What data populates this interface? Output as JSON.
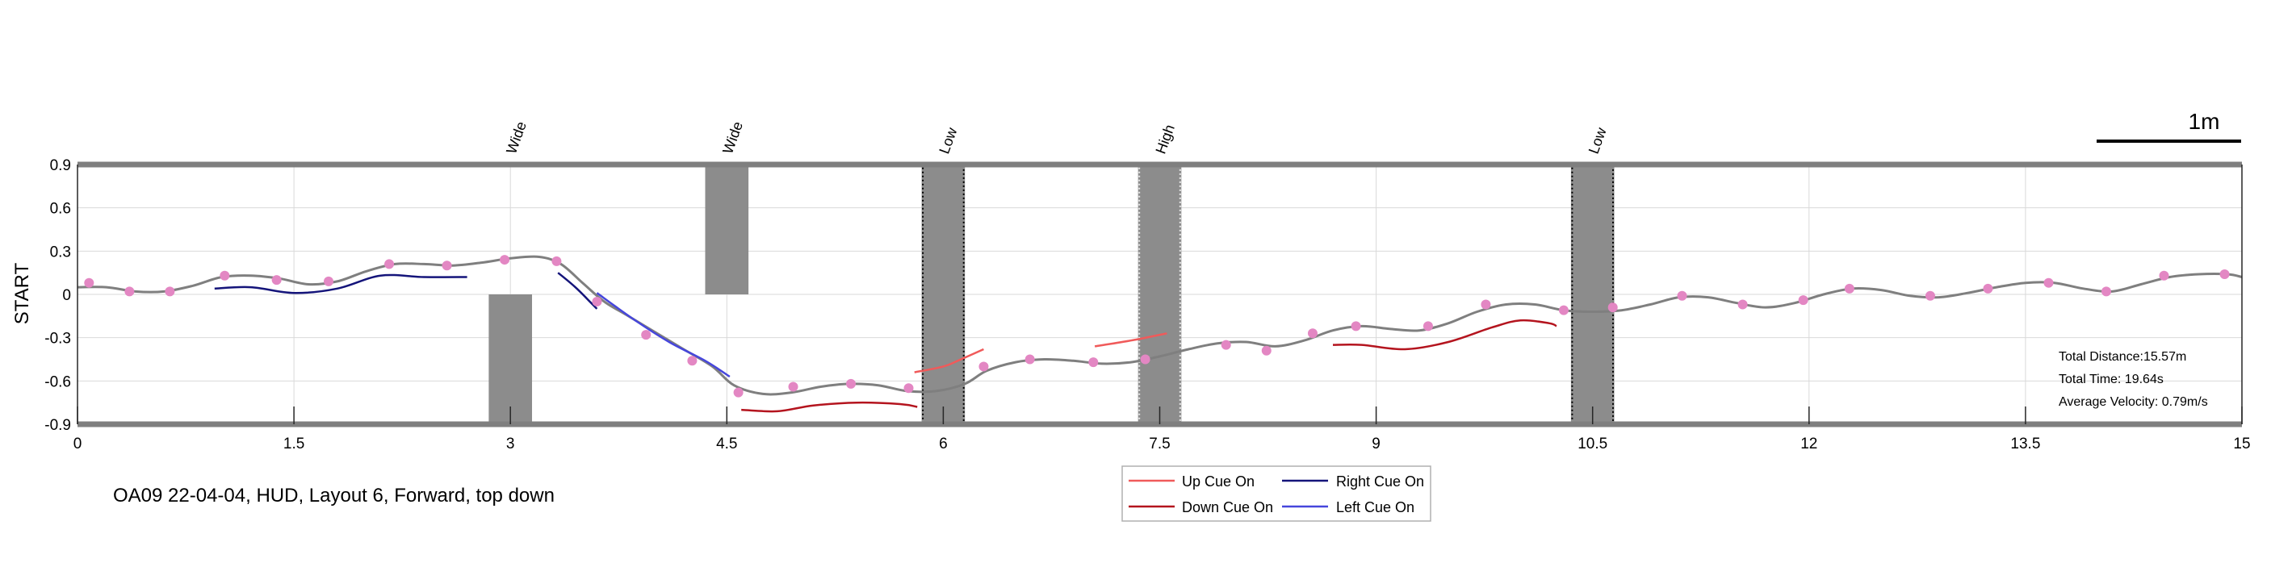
{
  "chart_data": {
    "type": "line",
    "title": "",
    "ylabel": "START",
    "xlabel": "",
    "xlim": [
      0,
      15
    ],
    "ylim": [
      -0.9,
      0.9
    ],
    "x_ticks": [
      "0",
      "1.5",
      "3",
      "4.5",
      "6",
      "7.5",
      "9",
      "10.5",
      "12",
      "13.5",
      "15"
    ],
    "y_ticks": [
      "0.9",
      "0.6",
      "0.3",
      "0",
      "-0.3",
      "-0.6",
      "-0.9"
    ],
    "grid": true,
    "scale_bar_label": "1m",
    "caption": "OA09 22-04-04, HUD, Layout 6, Forward, top down",
    "stats": [
      "Total Distance:15.57m",
      "Total Time: 19.64s",
      "Average Velocity: 0.79m/s"
    ],
    "legend": {
      "placement": "bottom-center",
      "entries": [
        {
          "label": "Up Cue On",
          "color": "#f05a5a"
        },
        {
          "label": "Right Cue On",
          "color": "#14147a"
        },
        {
          "label": "Down Cue On",
          "color": "#b4141e"
        },
        {
          "label": "Left Cue On",
          "color": "#4646dc"
        }
      ]
    },
    "obstacles": [
      {
        "label": "Wide",
        "x_start": 2.85,
        "x_end": 3.15,
        "y_start": -0.9,
        "y_end": 0.0,
        "label_x": 3.0,
        "dotted": false
      },
      {
        "label": "Wide",
        "x_start": 4.35,
        "x_end": 4.65,
        "y_start": 0.0,
        "y_end": 0.9,
        "label_x": 4.5,
        "dotted": false
      },
      {
        "label": "Low",
        "x_start": 5.85,
        "x_end": 6.15,
        "y_start": -0.9,
        "y_end": 0.9,
        "label_x": 6.0,
        "dotted": true,
        "dot_color": "#000000"
      },
      {
        "label": "High",
        "x_start": 7.35,
        "x_end": 7.65,
        "y_start": -0.9,
        "y_end": 0.9,
        "label_x": 7.5,
        "dotted": true,
        "dot_color": "#e6e6e6"
      },
      {
        "label": "Low",
        "x_start": 10.35,
        "x_end": 10.65,
        "y_start": -0.9,
        "y_end": 0.9,
        "label_x": 10.5,
        "dotted": true,
        "dot_color": "#000000"
      }
    ],
    "trajectory": {
      "color": "#7f7f7f",
      "points": [
        [
          0.0,
          0.05
        ],
        [
          0.2,
          0.05
        ],
        [
          0.4,
          0.02
        ],
        [
          0.6,
          0.02
        ],
        [
          0.8,
          0.06
        ],
        [
          1.0,
          0.12
        ],
        [
          1.2,
          0.13
        ],
        [
          1.4,
          0.11
        ],
        [
          1.6,
          0.07
        ],
        [
          1.8,
          0.09
        ],
        [
          2.0,
          0.16
        ],
        [
          2.2,
          0.21
        ],
        [
          2.4,
          0.21
        ],
        [
          2.6,
          0.2
        ],
        [
          2.8,
          0.22
        ],
        [
          3.0,
          0.25
        ],
        [
          3.2,
          0.26
        ],
        [
          3.35,
          0.21
        ],
        [
          3.5,
          0.08
        ],
        [
          3.65,
          -0.05
        ],
        [
          3.8,
          -0.14
        ],
        [
          4.0,
          -0.26
        ],
        [
          4.2,
          -0.38
        ],
        [
          4.4,
          -0.5
        ],
        [
          4.55,
          -0.63
        ],
        [
          4.75,
          -0.69
        ],
        [
          4.95,
          -0.68
        ],
        [
          5.15,
          -0.64
        ],
        [
          5.35,
          -0.62
        ],
        [
          5.55,
          -0.63
        ],
        [
          5.75,
          -0.67
        ],
        [
          5.95,
          -0.67
        ],
        [
          6.15,
          -0.62
        ],
        [
          6.3,
          -0.53
        ],
        [
          6.5,
          -0.47
        ],
        [
          6.7,
          -0.45
        ],
        [
          6.9,
          -0.46
        ],
        [
          7.1,
          -0.48
        ],
        [
          7.3,
          -0.47
        ],
        [
          7.5,
          -0.43
        ],
        [
          7.7,
          -0.38
        ],
        [
          7.9,
          -0.34
        ],
        [
          8.1,
          -0.33
        ],
        [
          8.3,
          -0.36
        ],
        [
          8.5,
          -0.32
        ],
        [
          8.7,
          -0.25
        ],
        [
          8.9,
          -0.22
        ],
        [
          9.1,
          -0.24
        ],
        [
          9.3,
          -0.25
        ],
        [
          9.5,
          -0.2
        ],
        [
          9.7,
          -0.12
        ],
        [
          9.9,
          -0.07
        ],
        [
          10.1,
          -0.07
        ],
        [
          10.3,
          -0.11
        ],
        [
          10.5,
          -0.12
        ],
        [
          10.7,
          -0.11
        ],
        [
          10.9,
          -0.07
        ],
        [
          11.1,
          -0.02
        ],
        [
          11.3,
          -0.02
        ],
        [
          11.5,
          -0.06
        ],
        [
          11.7,
          -0.09
        ],
        [
          11.9,
          -0.06
        ],
        [
          12.1,
          0.0
        ],
        [
          12.3,
          0.04
        ],
        [
          12.5,
          0.03
        ],
        [
          12.7,
          -0.01
        ],
        [
          12.9,
          -0.02
        ],
        [
          13.1,
          0.01
        ],
        [
          13.3,
          0.05
        ],
        [
          13.5,
          0.08
        ],
        [
          13.7,
          0.08
        ],
        [
          13.9,
          0.04
        ],
        [
          14.1,
          0.02
        ],
        [
          14.3,
          0.07
        ],
        [
          14.5,
          0.12
        ],
        [
          14.7,
          0.14
        ],
        [
          14.9,
          0.14
        ],
        [
          15.0,
          0.12
        ]
      ]
    },
    "markers": {
      "color": "#e387c3",
      "points": [
        [
          0.08,
          0.08
        ],
        [
          0.36,
          0.02
        ],
        [
          0.64,
          0.02
        ],
        [
          1.02,
          0.13
        ],
        [
          1.38,
          0.1
        ],
        [
          1.74,
          0.09
        ],
        [
          2.16,
          0.21
        ],
        [
          2.56,
          0.2
        ],
        [
          2.96,
          0.24
        ],
        [
          3.32,
          0.23
        ],
        [
          3.6,
          -0.05
        ],
        [
          3.94,
          -0.28
        ],
        [
          4.26,
          -0.46
        ],
        [
          4.58,
          -0.68
        ],
        [
          4.96,
          -0.64
        ],
        [
          5.36,
          -0.62
        ],
        [
          5.76,
          -0.65
        ],
        [
          6.28,
          -0.5
        ],
        [
          6.6,
          -0.45
        ],
        [
          7.04,
          -0.47
        ],
        [
          7.4,
          -0.45
        ],
        [
          7.96,
          -0.35
        ],
        [
          8.24,
          -0.39
        ],
        [
          8.56,
          -0.27
        ],
        [
          8.86,
          -0.22
        ],
        [
          9.36,
          -0.22
        ],
        [
          9.76,
          -0.07
        ],
        [
          10.3,
          -0.11
        ],
        [
          10.64,
          -0.09
        ],
        [
          11.12,
          -0.01
        ],
        [
          11.54,
          -0.07
        ],
        [
          11.96,
          -0.04
        ],
        [
          12.28,
          0.04
        ],
        [
          12.84,
          -0.01
        ],
        [
          13.24,
          0.04
        ],
        [
          13.66,
          0.08
        ],
        [
          14.06,
          0.02
        ],
        [
          14.46,
          0.13
        ],
        [
          14.88,
          0.14
        ]
      ]
    },
    "cue_segments": [
      {
        "cue": "Right Cue On",
        "color": "#14147a",
        "points": [
          [
            0.95,
            0.04
          ],
          [
            1.2,
            0.05
          ],
          [
            1.5,
            0.01
          ],
          [
            1.8,
            0.04
          ],
          [
            2.1,
            0.13
          ],
          [
            2.4,
            0.12
          ],
          [
            2.7,
            0.12
          ]
        ]
      },
      {
        "cue": "Right Cue On",
        "color": "#14147a",
        "points": [
          [
            3.33,
            0.15
          ],
          [
            3.45,
            0.05
          ],
          [
            3.57,
            -0.07
          ],
          [
            3.6,
            -0.1
          ]
        ]
      },
      {
        "cue": "Left Cue On",
        "color": "#4646dc",
        "points": [
          [
            3.6,
            0.01
          ],
          [
            3.85,
            -0.17
          ],
          [
            4.1,
            -0.33
          ],
          [
            4.35,
            -0.46
          ],
          [
            4.52,
            -0.57
          ]
        ]
      },
      {
        "cue": "Down Cue On",
        "color": "#b4141e",
        "points": [
          [
            4.6,
            -0.8
          ],
          [
            4.85,
            -0.81
          ],
          [
            5.1,
            -0.77
          ],
          [
            5.4,
            -0.75
          ],
          [
            5.7,
            -0.76
          ],
          [
            5.82,
            -0.78
          ]
        ]
      },
      {
        "cue": "Up Cue On",
        "color": "#f05a5a",
        "points": [
          [
            5.8,
            -0.54
          ],
          [
            6.0,
            -0.5
          ],
          [
            6.1,
            -0.46
          ],
          [
            6.28,
            -0.38
          ]
        ]
      },
      {
        "cue": "Up Cue On",
        "color": "#f05a5a",
        "points": [
          [
            7.05,
            -0.36
          ],
          [
            7.3,
            -0.32
          ],
          [
            7.55,
            -0.27
          ]
        ]
      },
      {
        "cue": "Down Cue On",
        "color": "#b4141e",
        "points": [
          [
            8.7,
            -0.35
          ],
          [
            8.9,
            -0.35
          ],
          [
            9.2,
            -0.38
          ],
          [
            9.5,
            -0.33
          ],
          [
            9.8,
            -0.23
          ],
          [
            10.0,
            -0.18
          ],
          [
            10.2,
            -0.2
          ],
          [
            10.25,
            -0.22
          ]
        ]
      }
    ]
  }
}
